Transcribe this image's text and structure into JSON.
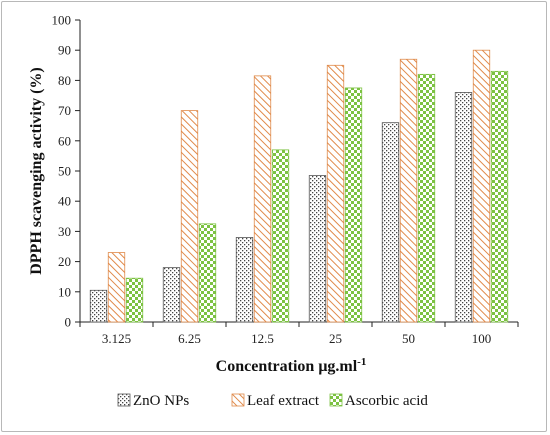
{
  "chart_data": {
    "type": "bar",
    "categories": [
      "3.125",
      "6.25",
      "12.5",
      "25",
      "50",
      "100"
    ],
    "series": [
      {
        "name": "ZnO NPs",
        "values": [
          10.5,
          18,
          28,
          48.5,
          66,
          76
        ],
        "color": "#555555",
        "pattern": "dots"
      },
      {
        "name": "Leaf extract",
        "values": [
          23,
          70,
          81.5,
          85,
          87,
          90
        ],
        "color": "#e08a4a",
        "pattern": "diagonal-hatch"
      },
      {
        "name": "Ascorbic acid",
        "values": [
          14.5,
          32.5,
          57,
          77.5,
          82,
          83
        ],
        "color": "#7cc242",
        "pattern": "checker"
      }
    ],
    "ylim": [
      0,
      100
    ],
    "yticks": [
      0,
      10,
      20,
      30,
      40,
      50,
      60,
      70,
      80,
      90,
      100
    ],
    "ylabel": "DPPH scavenging activity (%)",
    "xlabel": "Concentration μg.ml",
    "xlabel_superscript": "-1",
    "legend_position": "bottom",
    "grid": false
  }
}
